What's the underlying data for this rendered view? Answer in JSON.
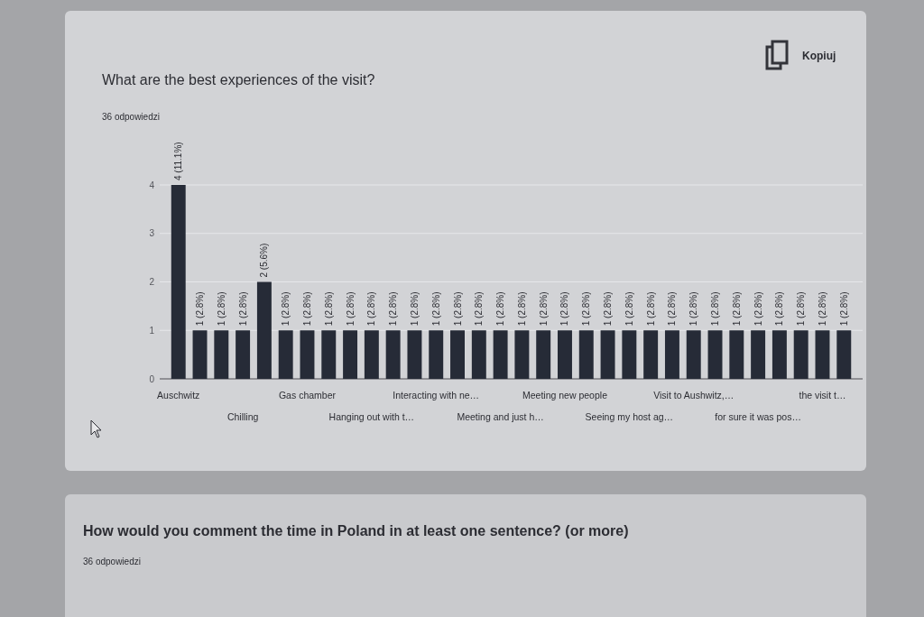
{
  "chart_data": {
    "type": "bar",
    "title": "What are the best experiences of the visit?",
    "subtitle": "36 odpowiedzi",
    "annotations": [
      "Kopiuj",
      "How would you comment the time in Poland in at least one sentence? (or more)",
      "36 odpowiedzi"
    ],
    "categories": [
      "Auschwitz",
      null,
      null,
      "Chilling",
      null,
      null,
      "Gas chamber",
      null,
      null,
      "Hanging out with t…",
      null,
      null,
      "Interacting with ne…",
      null,
      null,
      "Meeting and just h…",
      null,
      null,
      "Meeting new people",
      null,
      null,
      "Seeing my host ag…",
      null,
      null,
      "Visit to Aushwitz,…",
      null,
      null,
      "for sure it was pos…",
      null,
      null,
      "the visit t…",
      null
    ],
    "values": [
      4,
      1,
      1,
      1,
      2,
      1,
      1,
      1,
      1,
      1,
      1,
      1,
      1,
      1,
      1,
      1,
      1,
      1,
      1,
      1,
      1,
      1,
      1,
      1,
      1,
      1,
      1,
      1,
      1,
      1,
      1,
      1
    ],
    "value_labels": [
      "4 (11.1%)",
      "1 (2.8%)",
      "1 (2.8%)",
      "1 (2.8%)",
      "2 (5.6%)",
      "1 (2.8%)",
      "1 (2.8%)",
      "1 (2.8%)",
      "1 (2.8%)",
      "1 (2.8%)",
      "1 (2.8%)",
      "1 (2.8%)",
      "1 (2.8%)",
      "1 (2.8%)",
      "1 (2.8%)",
      "1 (2.8%)",
      "1 (2.8%)",
      "1 (2.8%)",
      "1 (2.8%)",
      "1 (2.8%)",
      "1 (2.8%)",
      "1 (2.8%)",
      "1 (2.8%)",
      "1 (2.8%)",
      "1 (2.8%)",
      "1 (2.8%)",
      "1 (2.8%)",
      "1 (2.8%)",
      "1 (2.8%)",
      "1 (2.8%)",
      "1 (2.8%)",
      "1 (2.8%)"
    ],
    "color": "#262b37",
    "ylim": [
      0,
      4
    ],
    "yticks": [
      0,
      1,
      2,
      3,
      4
    ],
    "grid": true
  }
}
